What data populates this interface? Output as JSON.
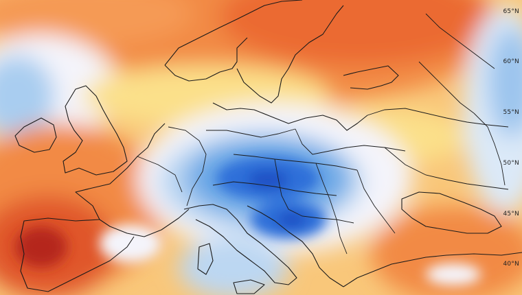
{
  "map": {
    "type": "temperature-anomaly-map",
    "region": "Europe",
    "palette": {
      "very_warm": "#c8321a",
      "warm": "#f07c3c",
      "mild_warm": "#f7b267",
      "slightly_warm": "#fbe08a",
      "neutral": "#f4f4fb",
      "slightly_cold": "#bcd7f2",
      "cold": "#6aa7e6",
      "very_cold": "#2d6fd9",
      "extreme_cold": "#1d4fc4"
    },
    "latitude_labels": [
      "65°N",
      "60°N",
      "55°N",
      "50°N",
      "45°N",
      "40°N"
    ]
  }
}
